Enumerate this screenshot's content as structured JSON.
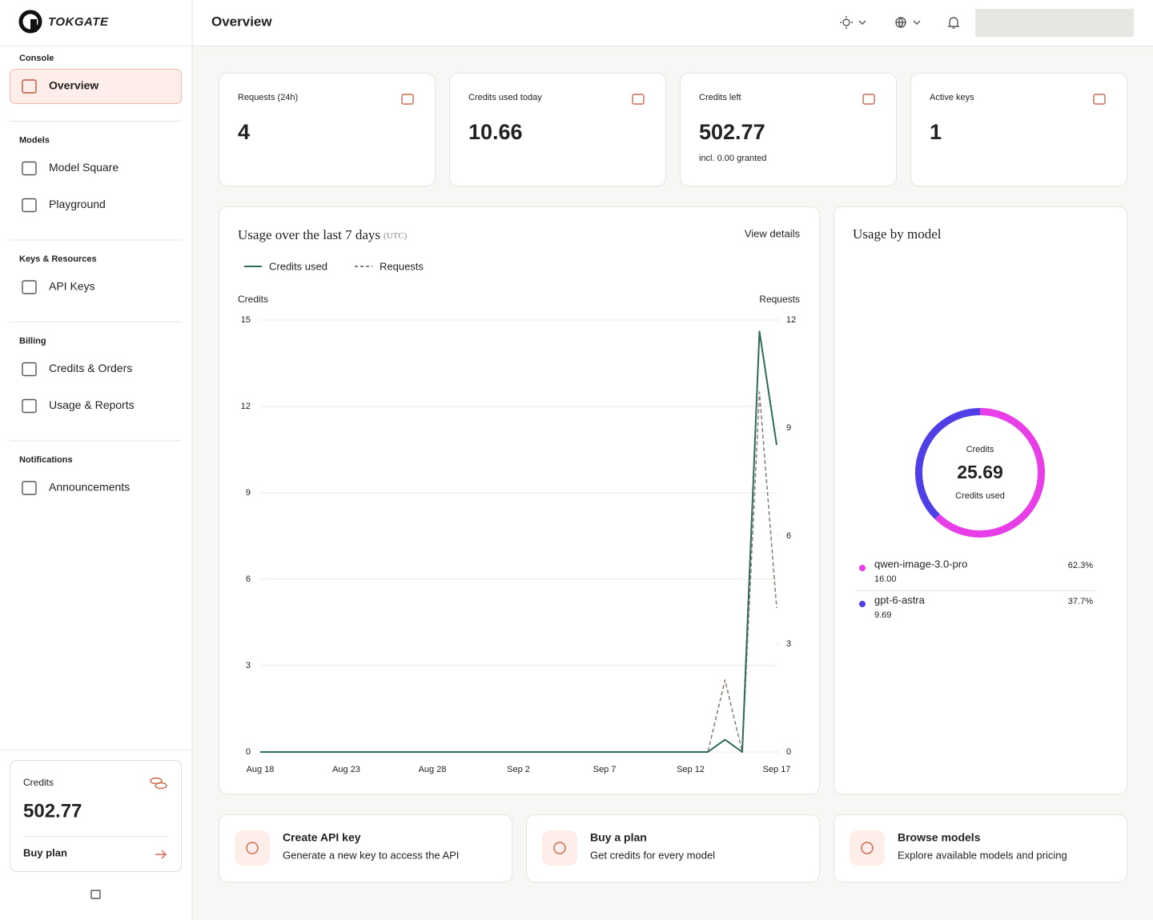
{
  "brand": "TOKGATE",
  "header": {
    "title": "Overview"
  },
  "sidebar": {
    "active_item": "Overview",
    "sections": [
      {
        "label": "Console",
        "items": [
          "Overview"
        ]
      },
      {
        "label": "Models",
        "items": [
          "Model Square",
          "Playground"
        ]
      },
      {
        "label": "Keys & Resources",
        "items": [
          "API Keys"
        ]
      },
      {
        "label": "Billing",
        "items": [
          "Credits & Orders",
          "Usage & Reports"
        ]
      },
      {
        "label": "Notifications",
        "items": [
          "Announcements"
        ]
      }
    ],
    "credits": {
      "label": "Credits",
      "value": 502.77,
      "action": "Buy plan"
    }
  },
  "stats": [
    {
      "label": "Requests (24h)",
      "value": 4
    },
    {
      "label": "Credits used today",
      "value": 10.66
    },
    {
      "label": "Credits left",
      "value": 502.77,
      "note": "incl. 0.00 granted"
    },
    {
      "label": "Active keys",
      "value": 1
    }
  ],
  "chart_data": [
    {
      "type": "line",
      "title": "Usage over the last 7 days",
      "title_note": "(UTC)",
      "link": "View details",
      "ylabel": "Credits",
      "y2label": "Requests",
      "categories": [
        "Aug 18",
        null,
        null,
        null,
        null,
        "Aug 23",
        null,
        null,
        null,
        null,
        "Aug 28",
        null,
        null,
        null,
        null,
        "Sep 2",
        null,
        null,
        null,
        null,
        "Sep 7",
        null,
        null,
        null,
        null,
        "Sep 12",
        null,
        null,
        null,
        null,
        "Sep 17"
      ],
      "series": [
        {
          "name": "Credits used",
          "color": "#2e6b57",
          "values": [
            0,
            0,
            0,
            0,
            0,
            0,
            0,
            0,
            0,
            0,
            0,
            0,
            0,
            0,
            0,
            0,
            0,
            0,
            0,
            0,
            0,
            0,
            0,
            0,
            0,
            0,
            0,
            0.43,
            0,
            14.6,
            10.66
          ]
        },
        {
          "name": "Requests",
          "color": "#8a7b72",
          "dash": true,
          "axis": "y2",
          "values": [
            0,
            0,
            0,
            0,
            0,
            0,
            0,
            0,
            0,
            0,
            0,
            0,
            0,
            0,
            0,
            0,
            0,
            0,
            0,
            0,
            0,
            0,
            0,
            0,
            0,
            0,
            0,
            2,
            0,
            10,
            4
          ]
        }
      ],
      "ylim": [
        0,
        15
      ],
      "yticks": [
        0,
        3,
        6,
        9,
        12,
        15
      ],
      "y2lim": [
        0,
        12
      ],
      "y2ticks": [
        0,
        3,
        6,
        9,
        12
      ],
      "grid": true
    },
    {
      "type": "pie",
      "title": "Usage by model",
      "center_label": "Credits",
      "total": 25.69,
      "total_label": "Credits used",
      "categories": [
        "qwen-image-3.0-pro",
        "gpt-6-astra"
      ],
      "values": [
        16,
        9.69
      ],
      "value_labels": [
        "16.00",
        "9.69"
      ],
      "percents": [
        62.3,
        37.7
      ],
      "percent_labels": [
        "62.3%",
        "37.7%"
      ],
      "colors": [
        "#e83ee8",
        "#4f3fe6"
      ]
    }
  ],
  "actions": [
    {
      "title": "Create API key",
      "text": "Generate a new key to access the API"
    },
    {
      "title": "Buy a plan",
      "text": "Get credits for every model"
    },
    {
      "title": "Browse models",
      "text": "Explore available models and pricing"
    }
  ]
}
